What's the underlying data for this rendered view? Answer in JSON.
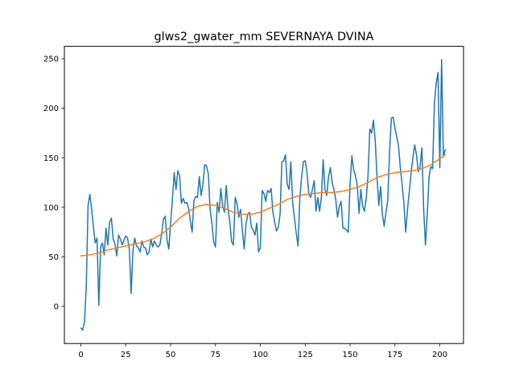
{
  "chart_data": {
    "type": "line",
    "title": "glws2_gwater_mm SEVERNAYA DVINA",
    "xlabel": "",
    "ylabel": "",
    "xlim": [
      -9.2,
      213.2
    ],
    "ylim": [
      -37.5,
      262.5
    ],
    "grid": false,
    "x_ticks": [
      0,
      25,
      50,
      75,
      100,
      125,
      150,
      175,
      200
    ],
    "y_ticks": [
      0,
      50,
      100,
      150,
      200,
      250
    ],
    "series": [
      {
        "color": "#1f77b4",
        "x": [
          0,
          1,
          2,
          3,
          4,
          5,
          6,
          7,
          8,
          9,
          10,
          11,
          12,
          13,
          14,
          15,
          16,
          17,
          18,
          19,
          20,
          21,
          22,
          23,
          24,
          25,
          26,
          27,
          28,
          29,
          30,
          31,
          32,
          33,
          34,
          35,
          36,
          37,
          38,
          39,
          40,
          41,
          42,
          43,
          44,
          45,
          46,
          47,
          48,
          49,
          50,
          51,
          52,
          53,
          54,
          55,
          56,
          57,
          58,
          59,
          60,
          61,
          62,
          63,
          64,
          65,
          66,
          67,
          68,
          69,
          70,
          71,
          72,
          73,
          74,
          75,
          76,
          77,
          78,
          79,
          80,
          81,
          82,
          83,
          84,
          85,
          86,
          87,
          88,
          89,
          90,
          91,
          92,
          93,
          94,
          95,
          96,
          97,
          98,
          99,
          100,
          101,
          102,
          103,
          104,
          105,
          106,
          107,
          108,
          109,
          110,
          111,
          112,
          113,
          114,
          115,
          116,
          117,
          118,
          119,
          120,
          121,
          122,
          123,
          124,
          125,
          126,
          127,
          128,
          129,
          130,
          131,
          132,
          133,
          134,
          135,
          136,
          137,
          138,
          139,
          140,
          141,
          142,
          143,
          144,
          145,
          146,
          147,
          148,
          149,
          150,
          151,
          152,
          153,
          154,
          155,
          156,
          157,
          158,
          159,
          160,
          161,
          162,
          163,
          164,
          165,
          166,
          167,
          168,
          169,
          170,
          171,
          172,
          173,
          174,
          175,
          176,
          177,
          178,
          179,
          180,
          181,
          182,
          183,
          184,
          185,
          186,
          187,
          188,
          189,
          190,
          191,
          192,
          193,
          194,
          195,
          196,
          197,
          198,
          199,
          200,
          201,
          202,
          203
        ],
        "y": [
          -22,
          -24,
          -16,
          20,
          102,
          113,
          98,
          80,
          64,
          69,
          1,
          60,
          64,
          52,
          79,
          62,
          85,
          89,
          68,
          63,
          51,
          72,
          68,
          62,
          67,
          71,
          69,
          58,
          13,
          56,
          69,
          61,
          59,
          55,
          66,
          60,
          59,
          52,
          55,
          68,
          60,
          66,
          62,
          60,
          62,
          73,
          88,
          91,
          67,
          58,
          84,
          108,
          135,
          118,
          137,
          132,
          104,
          109,
          104,
          105,
          99,
          86,
          75,
          107,
          111,
          110,
          131,
          112,
          123,
          143,
          142,
          134,
          98,
          84,
          65,
          60,
          105,
          95,
          119,
          101,
          95,
          122,
          98,
          85,
          65,
          62,
          110,
          104,
          90,
          98,
          76,
          58,
          83,
          93,
          95,
          80,
          77,
          72,
          84,
          55,
          59,
          117,
          114,
          106,
          117,
          115,
          119,
          95,
          85,
          76,
          80,
          93,
          146,
          147,
          153,
          123,
          118,
          146,
          105,
          89,
          74,
          61,
          109,
          131,
          146,
          147,
          135,
          114,
          110,
          118,
          127,
          96,
          110,
          96,
          110,
          148,
          118,
          112,
          131,
          140,
          125,
          118,
          108,
          90,
          101,
          106,
          79,
          79,
          77,
          75,
          124,
          152,
          138,
          132,
          122,
          94,
          118,
          101,
          96,
          109,
          132,
          179,
          175,
          188,
          168,
          131,
          102,
          121,
          93,
          81,
          95,
          107,
          156,
          190,
          191,
          180,
          171,
          162,
          140,
          123,
          104,
          75,
          98,
          116,
          135,
          150,
          163,
          153,
          136,
          141,
          160,
          98,
          62,
          93,
          131,
          141,
          139,
          205,
          225,
          236,
          140,
          249,
          151,
          158
        ]
      },
      {
        "color": "#ff7f0e",
        "x": [
          0,
          5,
          10,
          15,
          20,
          25,
          30,
          35,
          40,
          45,
          50,
          55,
          60,
          65,
          70,
          75,
          80,
          85,
          90,
          95,
          100,
          105,
          110,
          115,
          120,
          125,
          130,
          135,
          140,
          145,
          150,
          155,
          160,
          165,
          170,
          175,
          180,
          185,
          190,
          195,
          200,
          203
        ],
        "y": [
          51,
          52,
          54,
          57,
          59,
          61,
          63,
          65,
          68,
          73,
          80,
          89,
          96,
          101,
          103,
          102,
          99,
          95,
          93,
          93,
          95,
          99,
          103,
          108,
          111,
          113,
          114,
          115,
          115,
          116,
          118,
          121,
          125,
          130,
          133,
          135,
          136,
          137,
          139,
          143,
          149,
          153
        ]
      }
    ]
  }
}
